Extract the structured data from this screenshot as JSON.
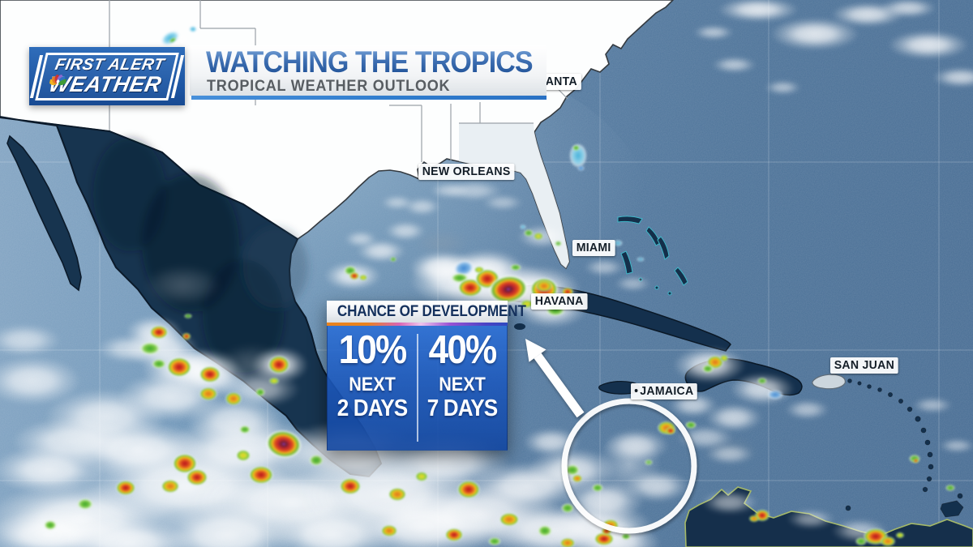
{
  "branding": {
    "line1": "FIRST ALERT",
    "line2": "WEATHER",
    "logo_icon": "nbc-peacock-icon"
  },
  "header": {
    "title": "WATCHING THE TROPICS",
    "subtitle": "TROPICAL WEATHER OUTLOOK"
  },
  "map": {
    "labels": [
      {
        "id": "atlanta-partial",
        "name": "ANTA"
      },
      {
        "id": "new-orleans",
        "name": "NEW ORLEANS"
      },
      {
        "id": "miami",
        "name": "MIAMI"
      },
      {
        "id": "havana",
        "name": "HAVANA"
      },
      {
        "id": "jamaica",
        "name": "JAMAICA"
      },
      {
        "id": "san-juan",
        "name": "SAN JUAN"
      }
    ],
    "annotations": [
      "development-area-circle",
      "development-area-arrow"
    ]
  },
  "development_panel": {
    "header": "CHANCE OF DEVELOPMENT",
    "columns": [
      {
        "percent": "10%",
        "line1": "NEXT",
        "line2": "2 DAYS"
      },
      {
        "percent": "40%",
        "line1": "NEXT",
        "line2": "7 DAYS"
      }
    ]
  },
  "colors": {
    "panel_blue": "#1c5cc0",
    "title_blue": "#2a5fa8",
    "accent_underline": "#2f7ccd",
    "ocean": "#527599",
    "land_dark": "#16334f",
    "land_light": "#ffffff",
    "gradient_bar": [
      "#e8821e",
      "#d865b4",
      "#9a53d4",
      "#2f49c0"
    ]
  }
}
